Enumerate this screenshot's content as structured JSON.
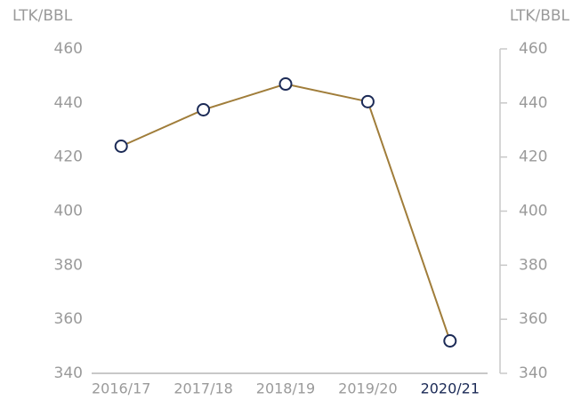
{
  "chart_data": {
    "type": "line",
    "y_axis_label": "LTK/BBL",
    "y2_axis_label": "LTK/BBL",
    "categories": [
      "2016/17",
      "2017/18",
      "2018/19",
      "2019/20",
      "2020/21"
    ],
    "series": [
      {
        "name": "LTK/BBL",
        "color": "#a07d3a",
        "marker_color": "#1b2a56",
        "values": [
          424,
          437.5,
          447,
          440.5,
          352
        ]
      }
    ],
    "ylim": [
      340,
      460
    ],
    "yticks": [
      340,
      360,
      380,
      400,
      420,
      440,
      460
    ],
    "y2lim": [
      340,
      460
    ],
    "y2ticks": [
      340,
      360,
      380,
      400,
      420,
      440,
      460
    ],
    "highlighted_category": "2020/21",
    "highlight_color": "#1b2a56",
    "grid": false
  }
}
